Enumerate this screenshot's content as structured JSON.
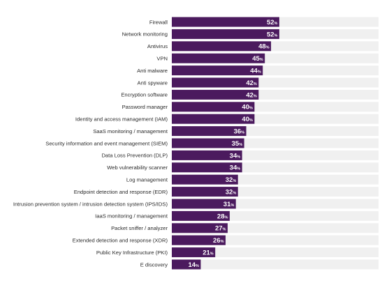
{
  "chart_data": {
    "type": "bar",
    "orientation": "horizontal",
    "categories": [
      "Firewall",
      "Network monitoring",
      "Antivirus",
      "VPN",
      "Anti malware",
      "Anti spyware",
      "Encryption software",
      "Password manager",
      "Identity and access management (IAM)",
      "SaaS monitoring / management",
      "Security information and event management (SIEM)",
      "Data Loss Prevention (DLP)",
      "Web vulnerability scanner",
      "Log management",
      "Endpoint detection and response (EDR)",
      "Intrusion prevention system / intrusion detection system (IPS/IDS)",
      "IaaS monitoring / management",
      "Packet sniffer / analyzer",
      "Extended detection and response (XDR)",
      "Public Key Infrastructure (PKI)",
      "E discovery"
    ],
    "values": [
      52,
      52,
      48,
      45,
      44,
      42,
      42,
      40,
      40,
      36,
      35,
      34,
      34,
      32,
      32,
      31,
      28,
      27,
      26,
      21,
      14
    ],
    "value_suffix": "%",
    "xlim": [
      0,
      100
    ],
    "title": "",
    "xlabel": "",
    "ylabel": "",
    "grid": false,
    "legend": "none",
    "colors": {
      "bar": "#4b1a5e",
      "track": "#f0f0f0",
      "label_text": "#2a2a2a",
      "value_text": "#ffffff"
    }
  }
}
